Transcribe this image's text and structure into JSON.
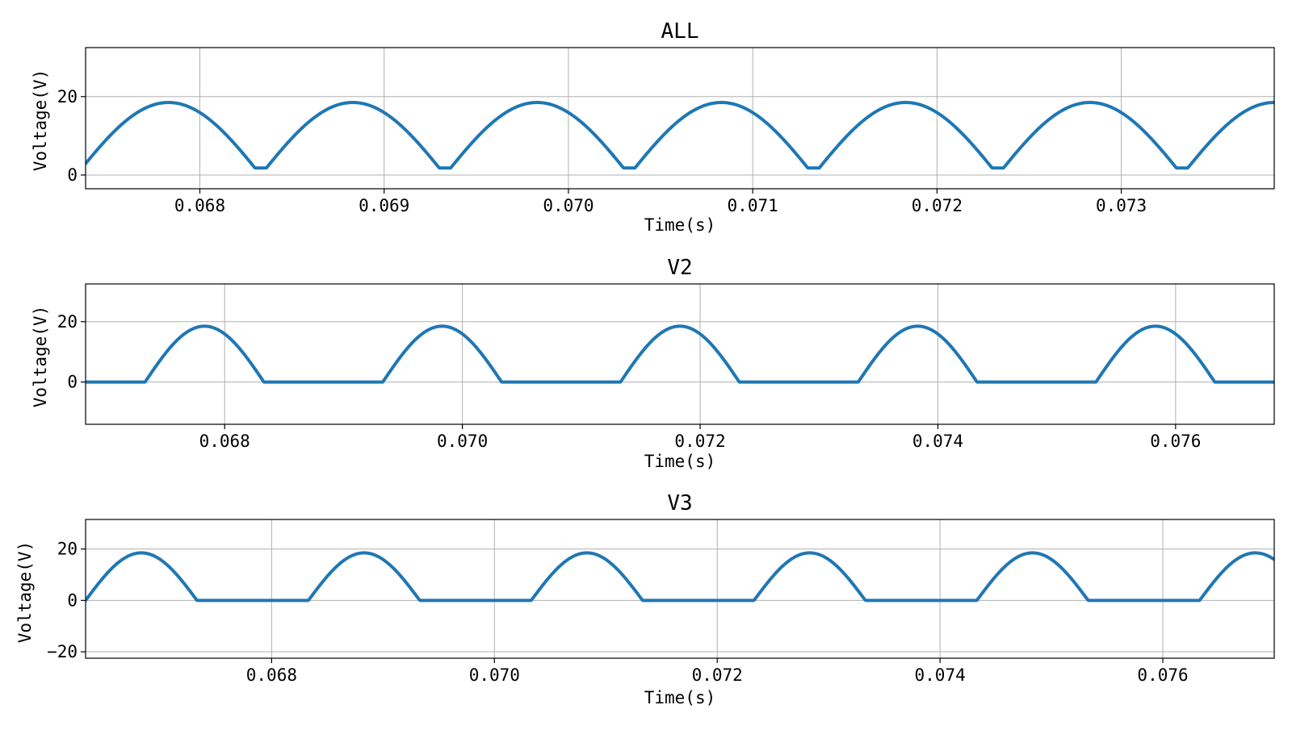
{
  "colors": {
    "series": "#1f77b4"
  },
  "chart_data": [
    {
      "type": "line",
      "title": "ALL",
      "xlabel": "Time(s)",
      "ylabel": "Voltage(V)",
      "xlim": [
        0.06738,
        0.07383
      ],
      "ylim": [
        -3.5,
        32.5
      ],
      "xticks": [
        0.068,
        0.069,
        0.07,
        0.071,
        0.072,
        0.073
      ],
      "xtick_labels": [
        "0.068",
        "0.069",
        "0.070",
        "0.071",
        "0.072",
        "0.073"
      ],
      "yticks": [
        0,
        20
      ],
      "ytick_labels": [
        "0",
        "20"
      ],
      "grid": true,
      "waveform": "full-wave rectified sine",
      "series": [
        {
          "period": 0.001,
          "amplitude": 18.5,
          "first_peak": 0.06783,
          "floor": 1.8,
          "values_sample": [
            {
              "x": 0.06783,
              "y": 18.0
            },
            {
              "x": 0.06835,
              "y": 1.8
            },
            {
              "x": 0.06883,
              "y": 18.2
            },
            {
              "x": 0.06935,
              "y": 1.8
            },
            {
              "x": 0.06983,
              "y": 18.3
            },
            {
              "x": 0.07035,
              "y": 1.8
            },
            {
              "x": 0.07083,
              "y": 18.6
            },
            {
              "x": 0.07135,
              "y": 1.8
            },
            {
              "x": 0.07183,
              "y": 18.8
            },
            {
              "x": 0.07235,
              "y": 1.8
            },
            {
              "x": 0.07283,
              "y": 18.9
            },
            {
              "x": 0.07335,
              "y": 1.8
            },
            {
              "x": 0.07378,
              "y": 18.9
            }
          ]
        }
      ]
    },
    {
      "type": "line",
      "title": "V2",
      "xlabel": "Time(s)",
      "ylabel": "Voltage(V)",
      "xlim": [
        0.06683,
        0.07683
      ],
      "ylim": [
        -14,
        32.5
      ],
      "xticks": [
        0.068,
        0.07,
        0.072,
        0.074,
        0.076
      ],
      "xtick_labels": [
        "0.068",
        "0.070",
        "0.072",
        "0.074",
        "0.076"
      ],
      "yticks": [
        0,
        20
      ],
      "ytick_labels": [
        "0",
        "20"
      ],
      "grid": true,
      "waveform": "half-wave rectified sine",
      "series": [
        {
          "period": 0.002,
          "amplitude": 18.5,
          "first_peak": 0.06783,
          "floor": 0.0,
          "values_sample": [
            {
              "x": 0.06733,
              "y": 0.0
            },
            {
              "x": 0.06783,
              "y": 18.0
            },
            {
              "x": 0.06833,
              "y": 0.0
            },
            {
              "x": 0.06983,
              "y": 18.2
            },
            {
              "x": 0.07183,
              "y": 18.7
            },
            {
              "x": 0.07383,
              "y": 18.8
            },
            {
              "x": 0.07583,
              "y": 18.4
            }
          ]
        }
      ]
    },
    {
      "type": "line",
      "title": "V3",
      "xlabel": "Time(s)",
      "ylabel": "Voltage(V)",
      "xlim": [
        0.06633,
        0.077
      ],
      "ylim": [
        -22.5,
        31.5
      ],
      "xticks": [
        0.068,
        0.07,
        0.072,
        0.074,
        0.076
      ],
      "xtick_labels": [
        "0.068",
        "0.070",
        "0.072",
        "0.074",
        "0.076"
      ],
      "yticks": [
        -20,
        0,
        20
      ],
      "ytick_labels": [
        "−20",
        "0",
        "20"
      ],
      "grid": true,
      "waveform": "half-wave rectified sine",
      "series": [
        {
          "period": 0.002,
          "amplitude": 18.5,
          "first_peak": 0.06683,
          "floor": 0.0,
          "values_sample": [
            {
              "x": 0.06683,
              "y": 18.0
            },
            {
              "x": 0.06733,
              "y": 0.0
            },
            {
              "x": 0.06883,
              "y": 18.2
            },
            {
              "x": 0.07083,
              "y": 18.5
            },
            {
              "x": 0.07283,
              "y": 18.9
            },
            {
              "x": 0.07483,
              "y": 18.6
            },
            {
              "x": 0.07683,
              "y": 18.4
            }
          ]
        }
      ]
    }
  ]
}
